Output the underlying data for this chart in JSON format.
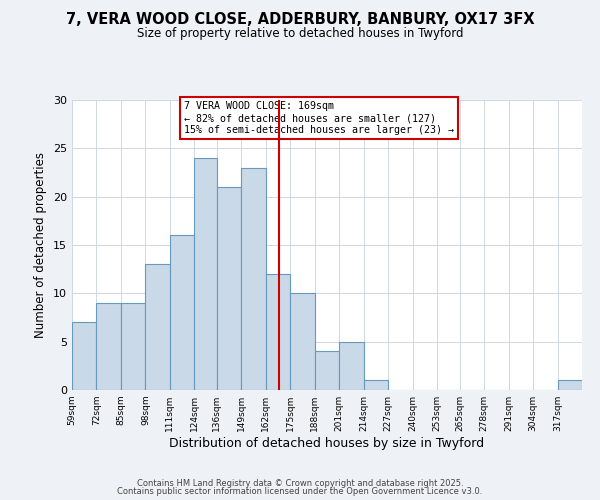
{
  "title": "7, VERA WOOD CLOSE, ADDERBURY, BANBURY, OX17 3FX",
  "subtitle": "Size of property relative to detached houses in Twyford",
  "xlabel": "Distribution of detached houses by size in Twyford",
  "ylabel": "Number of detached properties",
  "bin_labels": [
    "59sqm",
    "72sqm",
    "85sqm",
    "98sqm",
    "111sqm",
    "124sqm",
    "136sqm",
    "149sqm",
    "162sqm",
    "175sqm",
    "188sqm",
    "201sqm",
    "214sqm",
    "227sqm",
    "240sqm",
    "253sqm",
    "265sqm",
    "278sqm",
    "291sqm",
    "304sqm",
    "317sqm"
  ],
  "bin_edges": [
    59,
    72,
    85,
    98,
    111,
    124,
    136,
    149,
    162,
    175,
    188,
    201,
    214,
    227,
    240,
    253,
    265,
    278,
    291,
    304,
    317,
    330
  ],
  "counts": [
    7,
    9,
    9,
    13,
    16,
    24,
    21,
    23,
    12,
    10,
    4,
    5,
    1,
    0,
    0,
    0,
    0,
    0,
    0,
    0,
    1
  ],
  "bar_facecolor": "#c9d9e8",
  "bar_edgecolor": "#6699bb",
  "vline_x": 169,
  "vline_color": "#cc0000",
  "annotation_title": "7 VERA WOOD CLOSE: 169sqm",
  "annotation_line1": "← 82% of detached houses are smaller (127)",
  "annotation_line2": "15% of semi-detached houses are larger (23) →",
  "annotation_box_edgecolor": "#cc0000",
  "ylim": [
    0,
    30
  ],
  "yticks": [
    0,
    5,
    10,
    15,
    20,
    25,
    30
  ],
  "footer1": "Contains HM Land Registry data © Crown copyright and database right 2025.",
  "footer2": "Contains public sector information licensed under the Open Government Licence v3.0.",
  "bg_color": "#eef2f7",
  "plot_bg_color": "#ffffff"
}
